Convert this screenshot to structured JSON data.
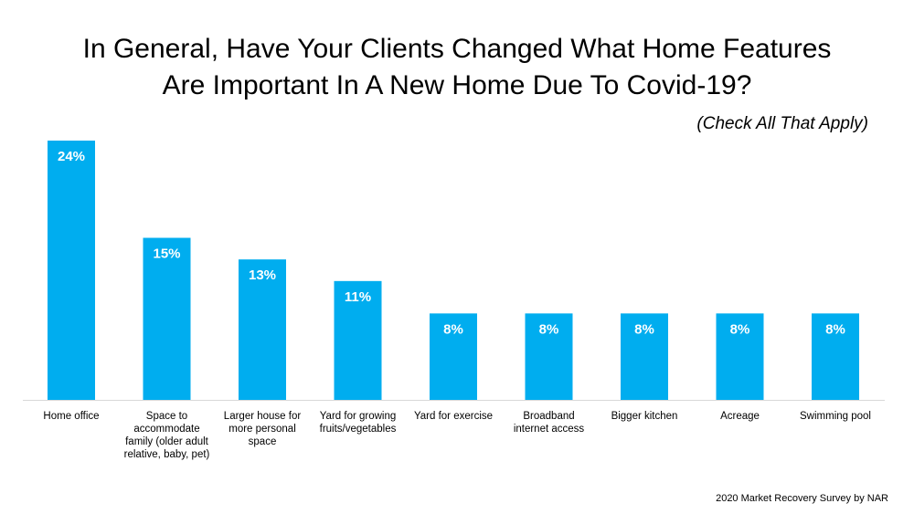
{
  "title_line1": "In General, Have Your Clients Changed What Home Features",
  "title_line2": "Are Important In A New Home Due To Covid-19?",
  "subtitle": "(Check All That Apply)",
  "source": "2020 Market Recovery Survey by NAR",
  "colors": {
    "bar": "#00ADEF",
    "axis": "#D9D9D9",
    "label_on_bar": "#FFFFFF"
  },
  "chart_data": {
    "type": "bar",
    "categories": [
      [
        "Home office"
      ],
      [
        "Space to",
        "accommodate",
        "family (older adult",
        "relative, baby, pet)"
      ],
      [
        "Larger house for",
        "more personal",
        "space"
      ],
      [
        "Yard for growing",
        "fruits/vegetables"
      ],
      [
        "Yard for exercise"
      ],
      [
        "Broadband",
        "internet access"
      ],
      [
        "Bigger kitchen"
      ],
      [
        "Acreage"
      ],
      [
        "Swimming pool"
      ]
    ],
    "values": [
      24,
      15,
      13,
      11,
      8,
      8,
      8,
      8,
      8
    ],
    "value_labels": [
      "24%",
      "15%",
      "13%",
      "11%",
      "8%",
      "8%",
      "8%",
      "8%",
      "8%"
    ],
    "ylim": [
      0,
      24
    ],
    "grid": false,
    "legend": "none"
  }
}
